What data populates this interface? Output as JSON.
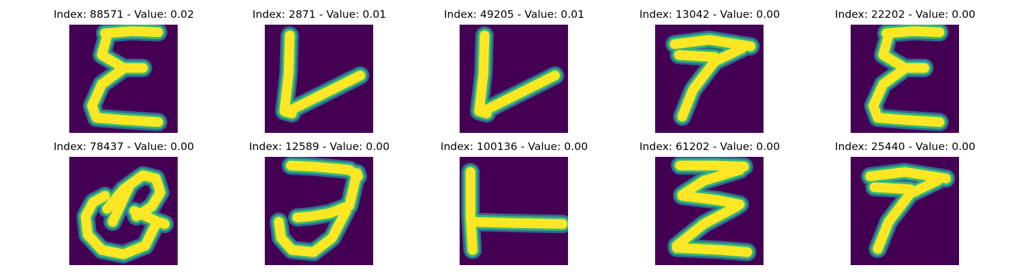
{
  "colormap": {
    "background": "#440154",
    "edge_dark": "#31688e",
    "edge_mid": "#35b779",
    "stroke": "#fde725"
  },
  "panels": [
    {
      "title": "Index: 88571 - Value: 0.02",
      "glyph": "epsilon-shape"
    },
    {
      "title": "Index: 2871 - Value: 0.01",
      "glyph": "check-shape"
    },
    {
      "title": "Index: 49205 - Value: 0.01",
      "glyph": "check-shape"
    },
    {
      "title": "Index: 13042 - Value: 0.00",
      "glyph": "seven-shape"
    },
    {
      "title": "Index: 22202 - Value: 0.00",
      "glyph": "epsilon-shape"
    },
    {
      "title": "Index: 78437 - Value: 0.00",
      "glyph": "loop-shape"
    },
    {
      "title": "Index: 12589 - Value: 0.00",
      "glyph": "three-shape"
    },
    {
      "title": "Index: 100136 - Value: 0.00",
      "glyph": "t-shape"
    },
    {
      "title": "Index: 61202 - Value: 0.00",
      "glyph": "z-shape"
    },
    {
      "title": "Index: 25440 - Value: 0.00",
      "glyph": "seven-shape"
    }
  ]
}
